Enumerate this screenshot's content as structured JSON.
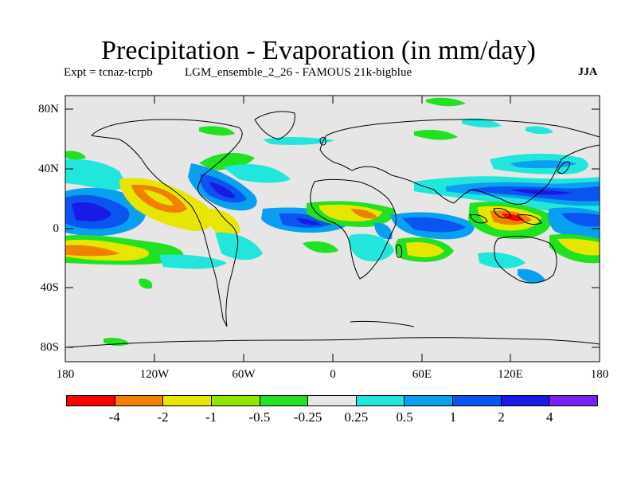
{
  "title": "Precipitation - Evaporation (in mm/day)",
  "subtitle_left": "Expt = tcnaz-tcrpb",
  "subtitle_mid": "LGM_ensemble_2_26 - FAMOUS 21k-bigblue",
  "season": "JJA",
  "lat_labels": [
    "80N",
    "40N",
    "0",
    "40S",
    "80S"
  ],
  "lon_labels": [
    "180",
    "120W",
    "60W",
    "0",
    "60E",
    "120E",
    "180"
  ],
  "colorbar": {
    "colors": [
      "#ff0000",
      "#f08000",
      "#e6e600",
      "#90e600",
      "#22e022",
      "#e6e6e6",
      "#22e6dc",
      "#0aa0f0",
      "#0a55f0",
      "#1a1ae6",
      "#7820f0"
    ],
    "labels": [
      "-4",
      "-2",
      "-1",
      "-0.5",
      "-0.25",
      "0.25",
      "0.5",
      "1",
      "2",
      "4"
    ]
  }
}
